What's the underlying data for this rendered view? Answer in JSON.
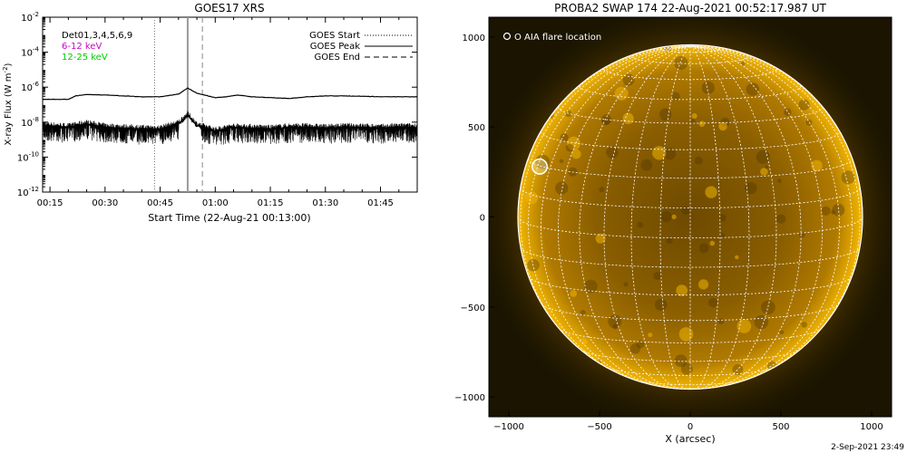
{
  "chart_data": [
    {
      "type": "line",
      "title": "GOES17 XRS",
      "xlabel": "Start Time (22-Aug-21 00:13:00)",
      "ylabel": "X-ray Flux (W m",
      "ylabel_sup": "-2",
      "ylabel_close": ")",
      "y_scale": "log",
      "xlim_minutes": [
        13,
        115
      ],
      "ylim": [
        1e-12,
        0.01
      ],
      "x_tick_minutes": [
        15,
        30,
        45,
        60,
        75,
        90,
        105
      ],
      "x_tick_labels": [
        "00:15",
        "00:30",
        "00:45",
        "01:00",
        "01:15",
        "01:30",
        "01:45"
      ],
      "y_tick_exponents": [
        -12,
        -10,
        -8,
        -6,
        -4,
        -2
      ],
      "y_tick_base": "10",
      "annotations": {
        "detectors": "Det01,3,4,5,6,9",
        "band_low": "6-12 keV",
        "band_high": "12-25 keV",
        "band_low_color": "#cc00cc",
        "band_high_color": "#00cc00"
      },
      "legend_position": "top-right",
      "legend": [
        {
          "label": "GOES Start",
          "style": "dotted"
        },
        {
          "label": "GOES Peak",
          "style": "solid"
        },
        {
          "label": "GOES End",
          "style": "dashed"
        }
      ],
      "event_lines_minutes": {
        "start": 43.5,
        "peak": 52.5,
        "end": 56.5
      },
      "series": [
        {
          "band": "long",
          "x_minutes": [
            13,
            20,
            22,
            25,
            30,
            35,
            40,
            45,
            50,
            52.5,
            55,
            60,
            63,
            66,
            70,
            75,
            80,
            85,
            90,
            95,
            100,
            105,
            110,
            115
          ],
          "log_values": [
            -6.7,
            -6.7,
            -6.5,
            -6.42,
            -6.45,
            -6.5,
            -6.55,
            -6.55,
            -6.4,
            -6.05,
            -6.35,
            -6.6,
            -6.55,
            -6.45,
            -6.55,
            -6.6,
            -6.65,
            -6.55,
            -6.5,
            -6.5,
            -6.52,
            -6.55,
            -6.55,
            -6.55
          ]
        },
        {
          "band": "short",
          "x_minutes": [
            13,
            20,
            25,
            30,
            35,
            40,
            45,
            50,
            52.5,
            55,
            60,
            65,
            70,
            75,
            80,
            85,
            90,
            95,
            100,
            105,
            110,
            115
          ],
          "log_values": [
            -8.2,
            -8.3,
            -8.1,
            -8.3,
            -8.35,
            -8.4,
            -8.4,
            -8.1,
            -7.6,
            -8.2,
            -8.5,
            -8.3,
            -8.35,
            -8.4,
            -8.3,
            -8.3,
            -8.35,
            -8.3,
            -8.3,
            -8.35,
            -8.3,
            -8.3
          ]
        }
      ]
    },
    {
      "type": "heatmap",
      "title": "PROBA2 SWAP 174 22-Aug-2021 00:52:17.987 UT",
      "xlabel": "X (arcsec)",
      "ylabel": "",
      "xlim": [
        -1110,
        1110
      ],
      "ylim": [
        -1110,
        1110
      ],
      "x_ticks": [
        -1000,
        -500,
        0,
        500,
        1000
      ],
      "y_ticks": [
        -1000,
        -500,
        0,
        500,
        1000
      ],
      "solar_radius_arcsec": 950,
      "legend": "O AIA flare location",
      "flare_location_arcsec": [
        -830,
        280
      ],
      "flare_marker_radius_arcsec": 75,
      "grid_spacing_deg": 10,
      "colors": {
        "disk_edge": "#f0b000",
        "disk_center": "#7a5200",
        "corona": "#d08a00",
        "grid": "#ffffff",
        "background": "#1a1400"
      }
    }
  ],
  "footer": {
    "timestamp": "2-Sep-2021 23:49"
  }
}
